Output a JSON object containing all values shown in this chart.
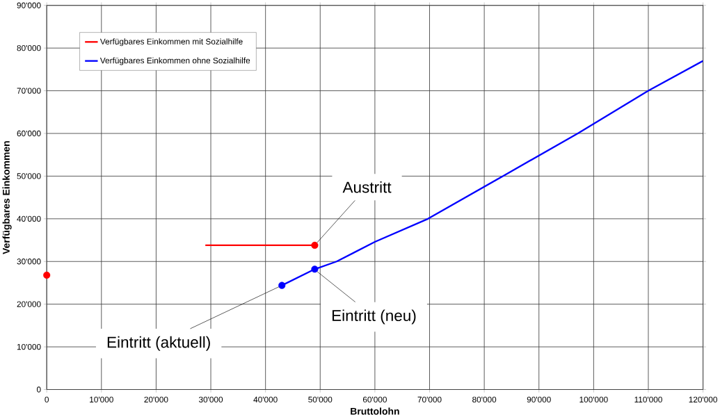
{
  "chart_data": {
    "type": "line",
    "xlabel": "Bruttolohn",
    "ylabel": "Verfügbares Einkommen",
    "xlim": [
      0,
      120000
    ],
    "ylim": [
      0,
      90000
    ],
    "xticks": [
      {
        "value": 0,
        "label": "0"
      },
      {
        "value": 10000,
        "label": "10'000"
      },
      {
        "value": 20000,
        "label": "20'000"
      },
      {
        "value": 30000,
        "label": "30'000"
      },
      {
        "value": 40000,
        "label": "40'000"
      },
      {
        "value": 50000,
        "label": "50'000"
      },
      {
        "value": 60000,
        "label": "60'000"
      },
      {
        "value": 70000,
        "label": "70'000"
      },
      {
        "value": 80000,
        "label": "80'000"
      },
      {
        "value": 90000,
        "label": "90'000"
      },
      {
        "value": 100000,
        "label": "100'000"
      },
      {
        "value": 110000,
        "label": "110'000"
      },
      {
        "value": 120000,
        "label": "120'000"
      }
    ],
    "yticks": [
      {
        "value": 0,
        "label": "0"
      },
      {
        "value": 10000,
        "label": "10'000"
      },
      {
        "value": 20000,
        "label": "20'000"
      },
      {
        "value": 30000,
        "label": "30'000"
      },
      {
        "value": 40000,
        "label": "40'000"
      },
      {
        "value": 50000,
        "label": "50'000"
      },
      {
        "value": 60000,
        "label": "60'000"
      },
      {
        "value": 70000,
        "label": "70'000"
      },
      {
        "value": 80000,
        "label": "80'000"
      },
      {
        "value": 90000,
        "label": "90'000"
      }
    ],
    "grid": true,
    "legend": "top left",
    "series": [
      {
        "name": "Verfügbares Einkommen mit Sozialhilfe",
        "color": "#ff0000",
        "x": [
          29000,
          49000
        ],
        "values": [
          33800,
          33800
        ]
      },
      {
        "name": "Verfügbares Einkommen ohne Sozialhilfe",
        "color": "#0000ff",
        "x": [
          43000,
          49000,
          53000,
          60000,
          69700,
          83400,
          97100,
          110000,
          120000
        ],
        "values": [
          24400,
          28200,
          30000,
          34600,
          40000,
          50000,
          60000,
          70000,
          77000
        ]
      },
      {
        "color": "#ff0000",
        "type": "scatter",
        "marker": "circle",
        "x": [
          0,
          49000
        ],
        "values": [
          26800,
          33800
        ]
      },
      {
        "color": "#0000ff",
        "type": "scatter",
        "marker": "circle",
        "x": [
          43000,
          49000
        ],
        "values": [
          24400,
          28200
        ]
      }
    ],
    "annotations": [
      {
        "text": "Austritt",
        "x": 49000,
        "y": 33800
      },
      {
        "text": "Eintritt (neu)",
        "x": 48900,
        "y": 28200
      },
      {
        "text": "Eintritt (aktuell)",
        "x": 43000,
        "y": 24400
      }
    ]
  }
}
